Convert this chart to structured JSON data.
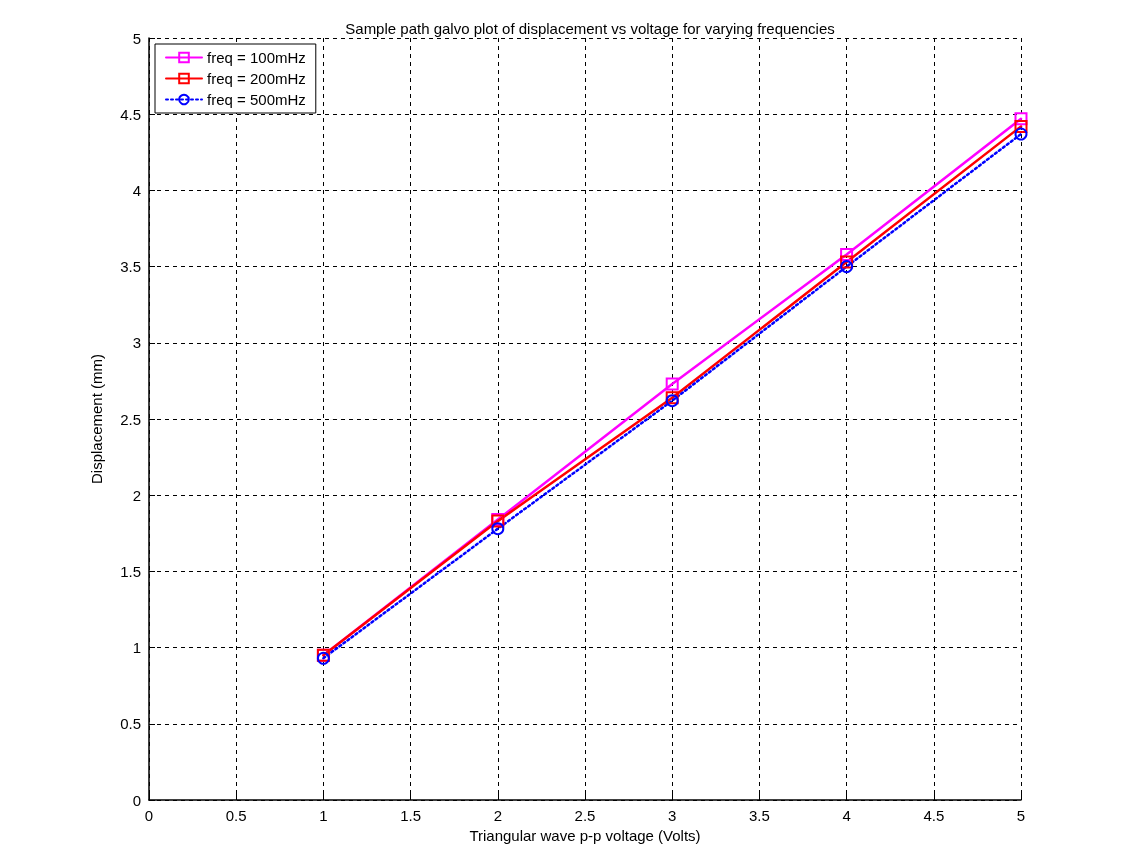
{
  "chart_data": {
    "type": "line",
    "title": "Sample path galvo plot of displacement vs voltage for varying frequencies",
    "xlabel": "Triangular wave p-p voltage (Volts)",
    "ylabel": "Displacement (mm)",
    "x": [
      1,
      2,
      3,
      4,
      5
    ],
    "series": [
      {
        "name": "freq = 100mHz",
        "color": "#ff00ff",
        "values": [
          0.95,
          1.84,
          2.73,
          3.58,
          4.47
        ],
        "marker": "square",
        "line_style": "solid"
      },
      {
        "name": "freq = 200mHz",
        "color": "#ff0000",
        "values": [
          0.95,
          1.83,
          2.64,
          3.53,
          4.42
        ],
        "marker": "square",
        "line_style": "solid"
      },
      {
        "name": "freq = 500mHz",
        "color": "#0000ff",
        "values": [
          0.93,
          1.78,
          2.62,
          3.5,
          4.37
        ],
        "marker": "circle",
        "line_style": "dotted"
      }
    ],
    "xlim": [
      0,
      5
    ],
    "xticks": [
      0,
      0.5,
      1,
      1.5,
      2,
      2.5,
      3,
      3.5,
      4,
      4.5,
      5
    ],
    "ylim": [
      0,
      5
    ],
    "yticks": [
      0,
      0.5,
      1,
      1.5,
      2,
      2.5,
      3,
      3.5,
      4,
      4.5,
      5
    ],
    "grid": true,
    "legend": "top left"
  }
}
